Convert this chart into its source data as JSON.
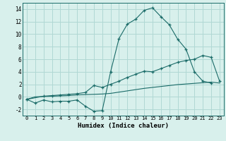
{
  "title": "",
  "xlabel": "Humidex (Indice chaleur)",
  "xlim": [
    -0.5,
    23.5
  ],
  "ylim": [
    -3,
    15
  ],
  "yticks": [
    -2,
    0,
    2,
    4,
    6,
    8,
    10,
    12,
    14
  ],
  "xticks": [
    0,
    1,
    2,
    3,
    4,
    5,
    6,
    7,
    8,
    9,
    10,
    11,
    12,
    13,
    14,
    15,
    16,
    17,
    18,
    19,
    20,
    21,
    22,
    23
  ],
  "bg_color": "#d8f0ec",
  "grid_color": "#b0d8d4",
  "line_color": "#1a6b68",
  "series1_x": [
    0,
    1,
    2,
    3,
    4,
    5,
    6,
    7,
    8,
    9,
    10,
    11,
    12,
    13,
    14,
    15,
    16,
    17,
    18,
    19,
    20,
    21,
    22
  ],
  "series1_y": [
    -0.4,
    -1.0,
    -0.5,
    -0.8,
    -0.7,
    -0.7,
    -0.5,
    -1.5,
    -2.3,
    -2.2,
    4.0,
    9.3,
    11.6,
    12.4,
    13.8,
    14.2,
    12.8,
    11.5,
    9.2,
    7.6,
    4.0,
    2.5,
    2.2
  ],
  "series2_x": [
    0,
    2,
    3,
    4,
    5,
    6,
    7,
    8,
    9,
    10,
    11,
    12,
    13,
    14,
    15,
    16,
    17,
    18,
    19,
    20,
    21,
    22,
    23
  ],
  "series2_y": [
    -0.4,
    0.1,
    0.2,
    0.3,
    0.4,
    0.5,
    0.7,
    1.8,
    1.5,
    2.0,
    2.5,
    3.1,
    3.6,
    4.1,
    4.0,
    4.5,
    5.0,
    5.5,
    5.8,
    6.0,
    6.6,
    6.3,
    2.5
  ],
  "series3_x": [
    0,
    1,
    2,
    3,
    4,
    5,
    6,
    7,
    8,
    9,
    10,
    11,
    12,
    13,
    14,
    15,
    16,
    17,
    18,
    19,
    20,
    21,
    22,
    23
  ],
  "series3_y": [
    -0.4,
    0.0,
    0.05,
    0.1,
    0.15,
    0.2,
    0.3,
    0.35,
    0.4,
    0.45,
    0.55,
    0.75,
    0.95,
    1.15,
    1.35,
    1.5,
    1.65,
    1.8,
    1.95,
    2.05,
    2.15,
    2.25,
    2.35,
    2.2
  ]
}
